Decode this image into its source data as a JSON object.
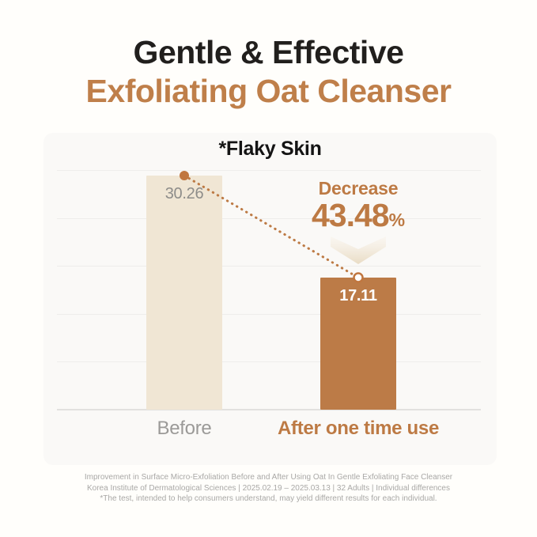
{
  "page": {
    "title_line1": "Gentle & Effective",
    "title_line2": "Exfoliating Oat Cleanser"
  },
  "chart_data": {
    "type": "bar",
    "title": "*Flaky Skin",
    "categories": [
      "Before",
      "After one time use"
    ],
    "values": [
      30.26,
      17.11
    ],
    "value_labels": [
      "30.26",
      "17.11"
    ],
    "ylim": [
      0,
      31
    ],
    "grid": "horizontal-only",
    "legend": "none",
    "bar_colors": [
      "#f0e6d4",
      "#bc7b47"
    ],
    "connector_color": "#bd7a44",
    "annotation": {
      "label": "Decrease",
      "value": "43.48",
      "unit": "%"
    }
  },
  "footer": {
    "line1": "Improvement in Surface Micro-Exfoliation Before and After Using Oat In Gentle Exfoliating Face Cleanser",
    "line2": "Korea Institute of Dermatological Sciences | 2025.02.19 – 2025.03.13 | 32 Adults | Individual differences",
    "line3": "*The test, intended to help consumers understand, may yield different results for each individual."
  },
  "colors": {
    "accent_brown": "#bf7f4a",
    "dark_text": "#211f1d",
    "muted_gray": "#9b9a98",
    "panel_bg": "#faf9f7",
    "page_bg": "#fffefb"
  }
}
